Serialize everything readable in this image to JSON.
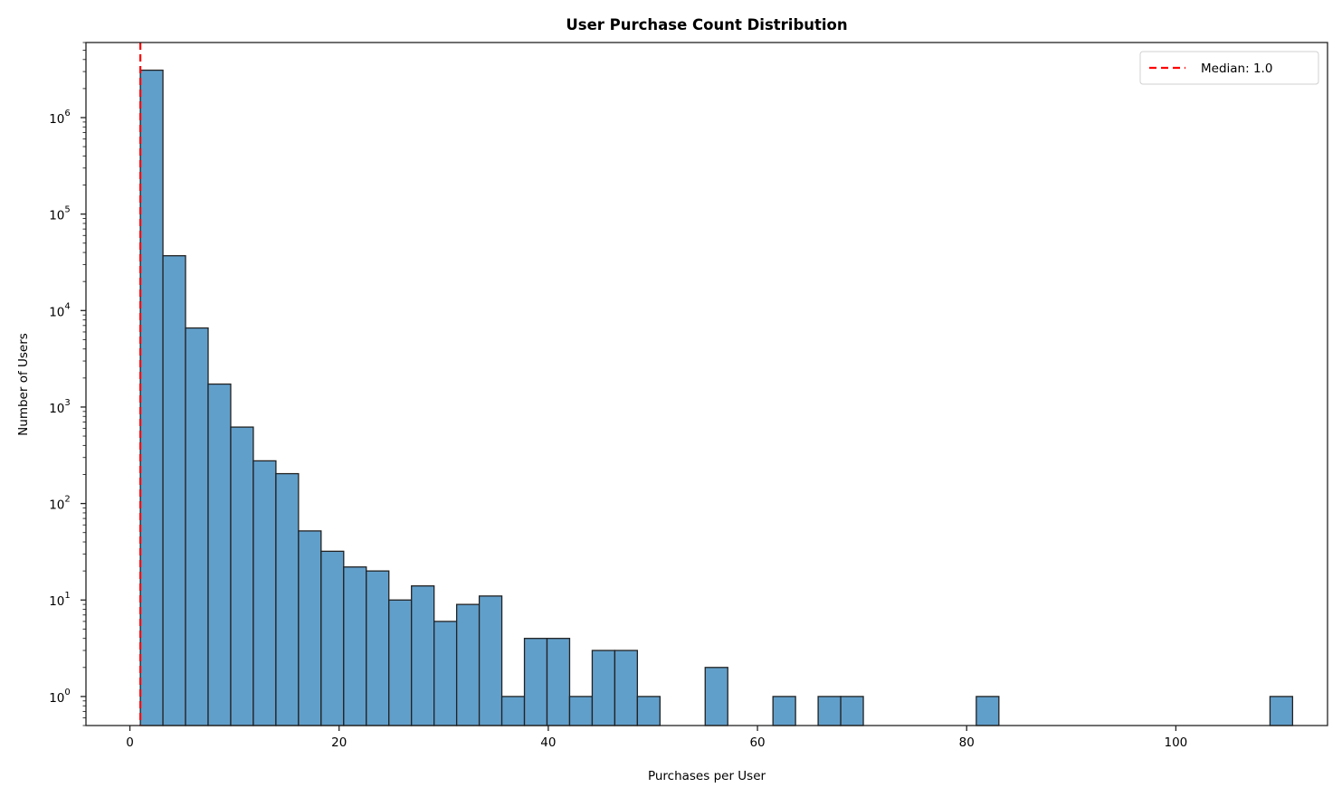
{
  "chart_data": {
    "type": "bar",
    "subtype": "histogram",
    "title": "User Purchase Count Distribution",
    "xlabel": "Purchases per User",
    "ylabel": "Number of Users",
    "yscale": "log",
    "xlim": [
      -4.2,
      114.5
    ],
    "ylim": [
      0.5,
      6000000
    ],
    "x_ticks": [
      0,
      20,
      40,
      60,
      80,
      100
    ],
    "y_ticks": [
      {
        "base": "10",
        "exp": "0",
        "value": 1
      },
      {
        "base": "10",
        "exp": "1",
        "value": 10
      },
      {
        "base": "10",
        "exp": "2",
        "value": 100
      },
      {
        "base": "10",
        "exp": "3",
        "value": 1000
      },
      {
        "base": "10",
        "exp": "4",
        "value": 10000
      },
      {
        "base": "10",
        "exp": "5",
        "value": 100000
      },
      {
        "base": "10",
        "exp": "6",
        "value": 1000000
      }
    ],
    "grid": false,
    "bin_start": 1,
    "bin_width": 2.16,
    "bar_color": "#619fcb",
    "bar_edge_color": "#222222",
    "values": [
      3100000,
      37000,
      6600,
      1730,
      620,
      277,
      204,
      52,
      32,
      22,
      20,
      10,
      14,
      6,
      9,
      11,
      1,
      4,
      4,
      1,
      3,
      3,
      1,
      0,
      0,
      2,
      0,
      0,
      1,
      0,
      1,
      1,
      0,
      0,
      0,
      0,
      0,
      1,
      0,
      0,
      0,
      0,
      0,
      0,
      0,
      0,
      0,
      0,
      0,
      0,
      1
    ],
    "median_line": {
      "x": 1.0,
      "color": "#ff0000",
      "style": "dashed"
    },
    "legend": {
      "position": "upper right",
      "entries": [
        {
          "label": "Median: 1.0",
          "style": "dashed",
          "color": "#ff0000"
        }
      ]
    }
  }
}
